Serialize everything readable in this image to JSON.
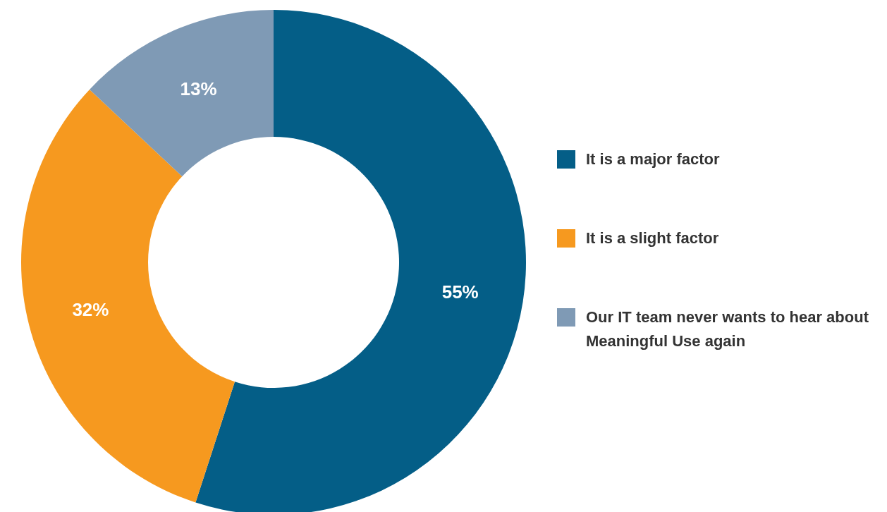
{
  "chart_data": {
    "type": "donut",
    "categories": [
      "It is a major factor",
      "It is a slight factor",
      "Our IT team never wants to hear about Meaningful Use again"
    ],
    "values": [
      55,
      32,
      13
    ],
    "colors": [
      "#045e87",
      "#f6991f",
      "#7f9ab5"
    ],
    "value_labels": [
      "55%",
      "32%",
      "13%"
    ],
    "legend": "right"
  }
}
